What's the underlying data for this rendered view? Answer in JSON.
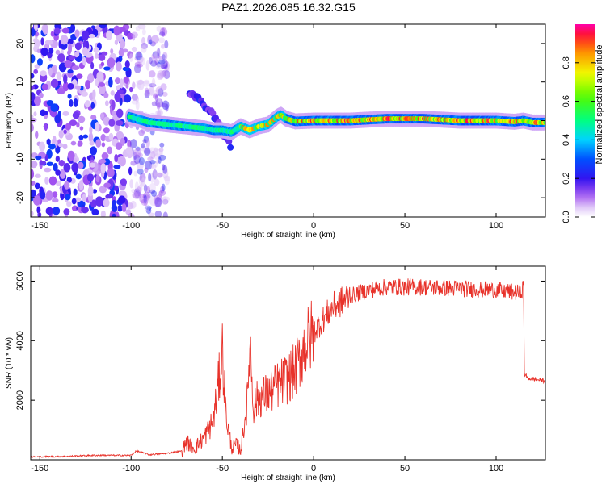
{
  "figure": {
    "title": "PAZ1.2026.085.16.32.G15"
  },
  "chart_data": [
    {
      "type": "heatmap",
      "title": "PAZ1.2026.085.16.32.G15",
      "xlabel": "Height of straight line (km)",
      "ylabel": "Frequency (Hz)",
      "xlim": [
        -155,
        127
      ],
      "ylim": [
        -25,
        25
      ],
      "xticks": [
        -150,
        -100,
        -50,
        0,
        50,
        100
      ],
      "yticks": [
        20,
        10,
        0,
        -10,
        -20
      ],
      "colorbar": {
        "label": "Normalized spectral amplitude",
        "range": [
          0,
          1
        ],
        "ticks": [
          0.0,
          0.2,
          0.4,
          0.6,
          0.8
        ]
      },
      "noise_region_x": [
        -155,
        -85
      ],
      "ridge": {
        "x": [
          -101,
          -90,
          -80,
          -70,
          -60,
          -55,
          -50,
          -45,
          -40,
          -35,
          -30,
          -25,
          -20,
          -18,
          -15,
          -10,
          0,
          20,
          40,
          60,
          80,
          100,
          110,
          115,
          120,
          127
        ],
        "y": [
          1.0,
          -0.5,
          -1.0,
          -1.5,
          -2.0,
          -2.5,
          -2.5,
          -3.0,
          -1.5,
          -2.5,
          -1.5,
          -1.0,
          1.0,
          1.5,
          0.5,
          -0.2,
          0.0,
          0.0,
          0.5,
          0.5,
          0.0,
          0.0,
          -0.3,
          0.0,
          -0.5,
          -0.5
        ]
      },
      "secondary_branch": {
        "x": [
          -68,
          -62,
          -56,
          -52,
          -48,
          -45
        ],
        "y": [
          7.5,
          5.0,
          2.0,
          -1.0,
          -4.5,
          -7.0
        ]
      }
    },
    {
      "type": "line",
      "xlabel": "Height of straight line (km)",
      "ylabel": "SNR (10 * v/v)",
      "xlim": [
        -155,
        127
      ],
      "ylim": [
        0,
        6500
      ],
      "xticks": [
        -150,
        -100,
        -50,
        0,
        50,
        100
      ],
      "yticks": [
        2000,
        4000,
        6000
      ],
      "series": [
        {
          "name": "SNR",
          "color": "#e8322a",
          "x": [
            -155,
            -140,
            -120,
            -100,
            -97,
            -90,
            -80,
            -72,
            -70,
            -65,
            -60,
            -55,
            -52,
            -50,
            -48,
            -45,
            -42,
            -40,
            -36,
            -35,
            -33,
            -30,
            -25,
            -20,
            -15,
            -10,
            -5,
            0,
            10,
            20,
            30,
            40,
            60,
            80,
            100,
            113,
            115,
            115.5,
            117,
            127
          ],
          "y": [
            100,
            110,
            150,
            150,
            300,
            170,
            220,
            300,
            600,
            400,
            750,
            1300,
            2600,
            3700,
            1500,
            400,
            500,
            300,
            2100,
            4200,
            1800,
            2100,
            2200,
            2500,
            2700,
            3000,
            3800,
            4300,
            5100,
            5500,
            5700,
            5800,
            5800,
            5750,
            5700,
            5600,
            5800,
            2900,
            2750,
            2650
          ]
        }
      ]
    }
  ]
}
